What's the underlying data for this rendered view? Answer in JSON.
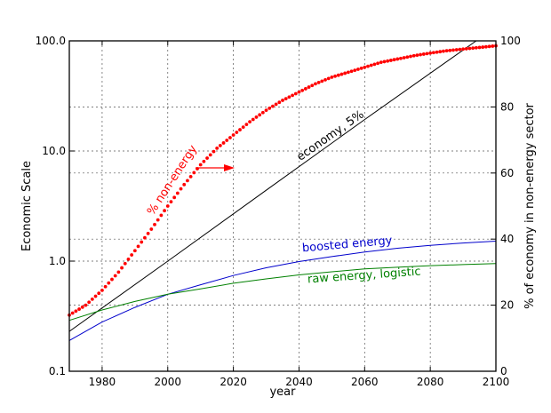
{
  "chart_data": {
    "type": "line",
    "title": "",
    "xlabel": "year",
    "ylabel": "Economic Scale",
    "ylabel_right": "% of economy in non-energy sector",
    "xlim": [
      1970,
      2100
    ],
    "ylim": [
      0.1,
      100.0
    ],
    "yscale": "log",
    "ylim_right": [
      0,
      100
    ],
    "grid": true,
    "x_ticks": [
      1980,
      2000,
      2020,
      2040,
      2060,
      2080,
      2100
    ],
    "y_ticks": [
      {
        "value": 0.1,
        "label": "0.1"
      },
      {
        "value": 1.0,
        "label": "1.0"
      },
      {
        "value": 10.0,
        "label": "10.0"
      },
      {
        "value": 100.0,
        "label": "100.0"
      }
    ],
    "y_ticks_right": [
      0,
      20,
      40,
      60,
      80,
      100
    ],
    "series": [
      {
        "name": "economy, 5%",
        "axis": "left",
        "color": "#000000",
        "style": "solid",
        "x": [
          1970,
          2000,
          2030,
          2060,
          2094
        ],
        "y": [
          0.23,
          1.0,
          4.4,
          19.3,
          100.0
        ]
      },
      {
        "name": "boosted energy",
        "axis": "left",
        "color": "#0000cc",
        "style": "solid",
        "x": [
          1970,
          1980,
          1990,
          2000,
          2010,
          2020,
          2030,
          2040,
          2050,
          2060,
          2070,
          2080,
          2090,
          2100
        ],
        "y": [
          0.19,
          0.28,
          0.38,
          0.5,
          0.61,
          0.74,
          0.87,
          0.99,
          1.1,
          1.21,
          1.31,
          1.39,
          1.46,
          1.52
        ]
      },
      {
        "name": "raw energy, logistic",
        "axis": "left",
        "color": "#008000",
        "style": "solid",
        "x": [
          1970,
          1980,
          1990,
          2000,
          2010,
          2020,
          2030,
          2040,
          2050,
          2060,
          2070,
          2080,
          2090,
          2100
        ],
        "y": [
          0.29,
          0.36,
          0.43,
          0.5,
          0.56,
          0.63,
          0.69,
          0.75,
          0.8,
          0.85,
          0.88,
          0.91,
          0.93,
          0.95
        ]
      },
      {
        "name": "% non-energy",
        "axis": "right",
        "color": "#ff0000",
        "style": "dotted",
        "x": [
          1970,
          1975,
          1980,
          1985,
          1990,
          1995,
          2000,
          2005,
          2010,
          2015,
          2020,
          2025,
          2030,
          2035,
          2040,
          2045,
          2050,
          2055,
          2060,
          2065,
          2070,
          2075,
          2080,
          2085,
          2090,
          2095,
          2100
        ],
        "y": [
          17.0,
          20.0,
          24.5,
          30.0,
          36.5,
          43.0,
          50.0,
          56.5,
          62.5,
          67.5,
          71.5,
          75.5,
          79.0,
          82.0,
          84.5,
          87.0,
          89.0,
          90.5,
          92.0,
          93.5,
          94.5,
          95.5,
          96.3,
          97.0,
          97.5,
          98.0,
          98.5
        ]
      }
    ],
    "annotations": [
      {
        "text": "% non-energy",
        "color": "#ff0000"
      },
      {
        "text": "economy, 5%",
        "color": "#000000"
      },
      {
        "text": "boosted energy",
        "color": "#0000cc"
      },
      {
        "text": "raw energy, logistic",
        "color": "#008000"
      }
    ]
  }
}
